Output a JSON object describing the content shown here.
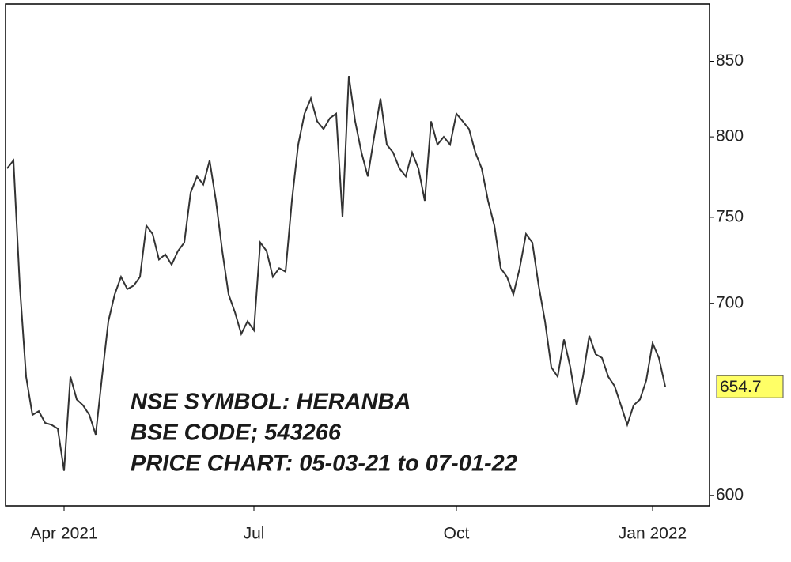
{
  "chart_data": {
    "type": "line",
    "annotations": [
      "NSE SYMBOL: HERANBA",
      "BSE CODE;  543266",
      "PRICE CHART: 05-03-21 to 07-01-22"
    ],
    "categories": [
      null,
      null,
      null,
      null,
      null,
      null,
      null,
      null,
      null,
      "Apr 2021",
      null,
      null,
      null,
      null,
      null,
      null,
      null,
      null,
      null,
      null,
      null,
      null,
      null,
      null,
      null,
      null,
      null,
      null,
      null,
      null,
      null,
      null,
      null,
      null,
      null,
      null,
      null,
      null,
      null,
      "Jul",
      null,
      null,
      null,
      null,
      null,
      null,
      null,
      null,
      null,
      null,
      null,
      null,
      null,
      null,
      null,
      null,
      null,
      null,
      null,
      null,
      null,
      null,
      null,
      null,
      null,
      null,
      null,
      null,
      null,
      null,
      null,
      "Oct",
      null,
      null,
      null,
      null,
      null,
      null,
      null,
      null,
      null,
      null,
      null,
      null,
      null,
      null,
      null,
      null,
      null,
      null,
      null,
      null,
      null,
      null,
      null,
      null,
      null,
      null,
      null,
      null,
      null,
      null,
      "Jan 2022",
      null,
      null
    ],
    "series": [
      {
        "color": "#333333",
        "values": [
          780,
          785,
          710,
          660,
          640,
          642,
          636,
          635,
          633,
          612,
          660,
          648,
          645,
          640,
          630,
          660,
          690,
          705,
          715,
          708,
          710,
          715,
          745,
          740,
          725,
          728,
          722,
          730,
          735,
          765,
          775,
          770,
          785,
          760,
          730,
          705,
          695,
          683,
          690,
          685,
          735,
          730,
          715,
          720,
          718,
          760,
          795,
          815,
          825,
          810,
          805,
          812,
          815,
          750,
          840,
          810,
          790,
          775,
          800,
          825,
          795,
          790,
          780,
          775,
          790,
          780,
          760,
          810,
          795,
          800,
          795,
          815,
          810,
          805,
          790,
          780,
          760,
          745,
          720,
          715,
          705,
          720,
          740,
          735,
          710,
          690,
          665,
          660,
          680,
          665,
          645,
          660,
          682,
          672,
          670,
          660,
          655,
          645,
          635,
          645,
          648,
          658,
          678,
          670,
          654.7
        ]
      }
    ],
    "log": true,
    "ylim": [
      595,
      890
    ],
    "yticks": [
      600,
      700,
      750,
      800,
      850
    ],
    "last_value_color": "#ffff66"
  }
}
